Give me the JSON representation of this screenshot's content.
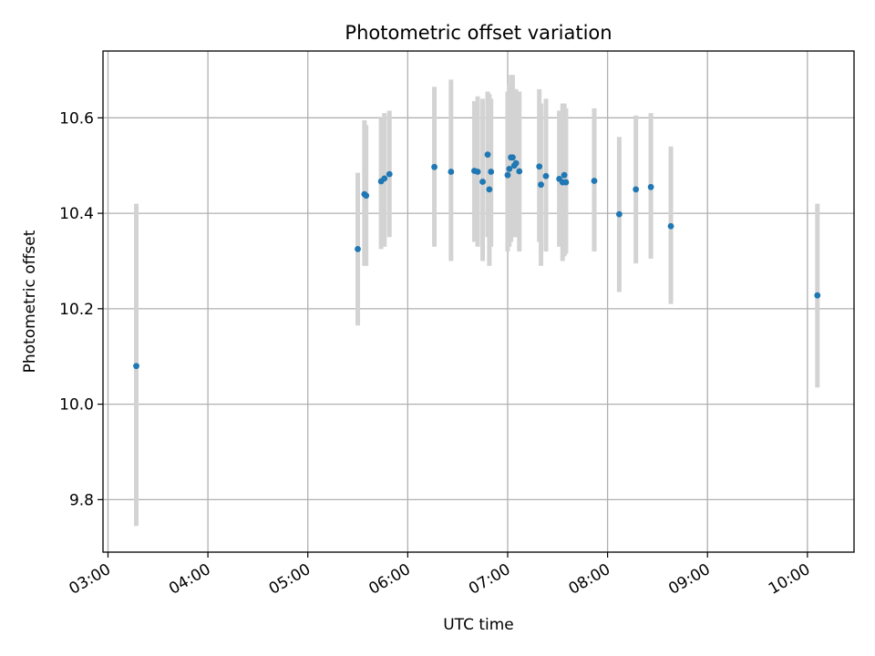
{
  "chart_data": {
    "type": "scatter",
    "title": "Photometric offset variation",
    "xlabel": "UTC time",
    "ylabel": "Photometric offset",
    "x_ticks": [
      "03:00",
      "04:00",
      "05:00",
      "06:00",
      "07:00",
      "08:00",
      "09:00",
      "10:00"
    ],
    "y_ticks": [
      "9.8",
      "10.0",
      "10.2",
      "10.4",
      "10.6"
    ],
    "xlim": [
      "02:57",
      "10:28"
    ],
    "ylim": [
      9.69,
      10.74
    ],
    "grid": true,
    "point_color": "#1f77b4",
    "errorbar_color": "#d3d3d3",
    "points": [
      {
        "x": "03:17",
        "y": 10.08,
        "lo": 9.745,
        "hi": 10.42
      },
      {
        "x": "05:30",
        "y": 10.325,
        "lo": 10.165,
        "hi": 10.485
      },
      {
        "x": "05:34",
        "y": 10.44,
        "lo": 10.29,
        "hi": 10.595
      },
      {
        "x": "05:35",
        "y": 10.437,
        "lo": 10.29,
        "hi": 10.585
      },
      {
        "x": "05:44",
        "y": 10.467,
        "lo": 10.325,
        "hi": 10.6
      },
      {
        "x": "05:46",
        "y": 10.473,
        "lo": 10.33,
        "hi": 10.61
      },
      {
        "x": "05:49",
        "y": 10.482,
        "lo": 10.35,
        "hi": 10.615
      },
      {
        "x": "06:16",
        "y": 10.497,
        "lo": 10.33,
        "hi": 10.665
      },
      {
        "x": "06:26",
        "y": 10.487,
        "lo": 10.3,
        "hi": 10.68
      },
      {
        "x": "06:40",
        "y": 10.489,
        "lo": 10.34,
        "hi": 10.635
      },
      {
        "x": "06:42",
        "y": 10.487,
        "lo": 10.33,
        "hi": 10.645
      },
      {
        "x": "06:45",
        "y": 10.466,
        "lo": 10.3,
        "hi": 10.64
      },
      {
        "x": "06:48",
        "y": 10.523,
        "lo": 10.35,
        "hi": 10.655
      },
      {
        "x": "06:49",
        "y": 10.45,
        "lo": 10.29,
        "hi": 10.65
      },
      {
        "x": "06:50",
        "y": 10.487,
        "lo": 10.33,
        "hi": 10.64
      },
      {
        "x": "07:00",
        "y": 10.48,
        "lo": 10.32,
        "hi": 10.655
      },
      {
        "x": "07:01",
        "y": 10.493,
        "lo": 10.33,
        "hi": 10.67
      },
      {
        "x": "07:02",
        "y": 10.517,
        "lo": 10.34,
        "hi": 10.69
      },
      {
        "x": "07:03",
        "y": 10.517,
        "lo": 10.35,
        "hi": 10.69
      },
      {
        "x": "07:04",
        "y": 10.5,
        "lo": 10.35,
        "hi": 10.66
      },
      {
        "x": "07:05",
        "y": 10.505,
        "lo": 10.35,
        "hi": 10.66
      },
      {
        "x": "07:07",
        "y": 10.488,
        "lo": 10.32,
        "hi": 10.655
      },
      {
        "x": "07:19",
        "y": 10.498,
        "lo": 10.34,
        "hi": 10.66
      },
      {
        "x": "07:20",
        "y": 10.46,
        "lo": 10.29,
        "hi": 10.63
      },
      {
        "x": "07:23",
        "y": 10.478,
        "lo": 10.32,
        "hi": 10.64
      },
      {
        "x": "07:31",
        "y": 10.472,
        "lo": 10.33,
        "hi": 10.615
      },
      {
        "x": "07:33",
        "y": 10.465,
        "lo": 10.3,
        "hi": 10.63
      },
      {
        "x": "07:34",
        "y": 10.48,
        "lo": 10.31,
        "hi": 10.63
      },
      {
        "x": "07:35",
        "y": 10.465,
        "lo": 10.315,
        "hi": 10.62
      },
      {
        "x": "07:52",
        "y": 10.468,
        "lo": 10.32,
        "hi": 10.62
      },
      {
        "x": "08:07",
        "y": 10.398,
        "lo": 10.235,
        "hi": 10.56
      },
      {
        "x": "08:17",
        "y": 10.45,
        "lo": 10.295,
        "hi": 10.605
      },
      {
        "x": "08:26",
        "y": 10.455,
        "lo": 10.305,
        "hi": 10.61
      },
      {
        "x": "08:38",
        "y": 10.373,
        "lo": 10.21,
        "hi": 10.54
      },
      {
        "x": "10:06",
        "y": 10.228,
        "lo": 10.035,
        "hi": 10.42
      }
    ]
  }
}
